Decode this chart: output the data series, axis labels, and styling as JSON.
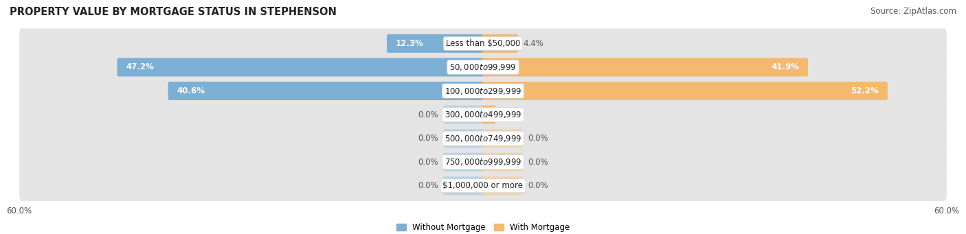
{
  "title": "PROPERTY VALUE BY MORTGAGE STATUS IN STEPHENSON",
  "source": "Source: ZipAtlas.com",
  "categories": [
    "Less than $50,000",
    "$50,000 to $99,999",
    "$100,000 to $299,999",
    "$300,000 to $499,999",
    "$500,000 to $749,999",
    "$750,000 to $999,999",
    "$1,000,000 or more"
  ],
  "without_mortgage": [
    12.3,
    47.2,
    40.6,
    0.0,
    0.0,
    0.0,
    0.0
  ],
  "with_mortgage": [
    4.4,
    41.9,
    52.2,
    1.5,
    0.0,
    0.0,
    0.0
  ],
  "color_without": "#7bafd4",
  "color_with": "#f5b96e",
  "color_without_light": "#b8d4e8",
  "color_with_light": "#f5d4a8",
  "xlim": 60.0,
  "stub_size": 5.0,
  "background_row_color": "#e4e4e4",
  "background_fig_color": "#ffffff",
  "title_fontsize": 10.5,
  "source_fontsize": 8.5,
  "label_fontsize": 8.5,
  "category_fontsize": 8.5,
  "axis_label_fontsize": 8.5,
  "legend_labels": [
    "Without Mortgage",
    "With Mortgage"
  ]
}
